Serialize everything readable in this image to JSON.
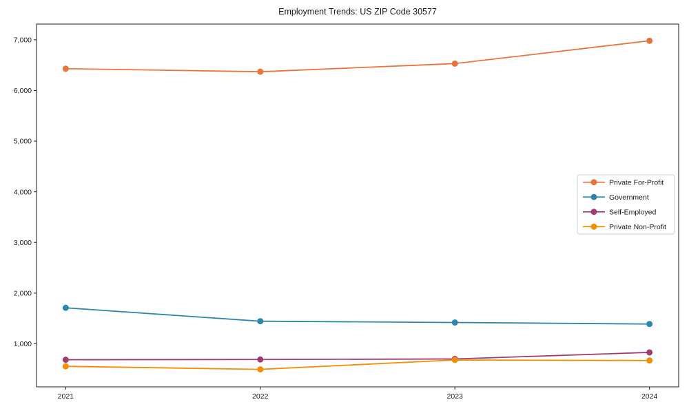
{
  "chart_data": {
    "type": "line",
    "title": "Employment Trends: US ZIP Code 30577",
    "xlabel": "",
    "ylabel": "",
    "x": [
      2021,
      2022,
      2023,
      2024
    ],
    "x_tick_labels": [
      "2021",
      "2022",
      "2023",
      "2024"
    ],
    "y_ticks": [
      1000,
      2000,
      3000,
      4000,
      5000,
      6000,
      7000
    ],
    "y_tick_labels": [
      "1,000",
      "2,000",
      "3,000",
      "4,000",
      "5,000",
      "6,000",
      "7,000"
    ],
    "xlim": [
      2020.85,
      2024.15
    ],
    "ylim": [
      150,
      7310
    ],
    "grid": false,
    "legend_position": "center-right",
    "series": [
      {
        "name": "Private For-Profit",
        "color": "#E8743B",
        "values": [
          6430,
          6370,
          6530,
          6980
        ]
      },
      {
        "name": "Government",
        "color": "#2E86AB",
        "values": [
          1710,
          1445,
          1420,
          1390
        ]
      },
      {
        "name": "Self-Employed",
        "color": "#A23B72",
        "values": [
          685,
          690,
          700,
          830
        ]
      },
      {
        "name": "Private Non-Profit",
        "color": "#F18F01",
        "values": [
          555,
          495,
          680,
          670
        ]
      }
    ],
    "axis_color": "#1a1a1a",
    "legend_border_color": "#cccccc",
    "legend_bg_color": "#ffffff"
  }
}
